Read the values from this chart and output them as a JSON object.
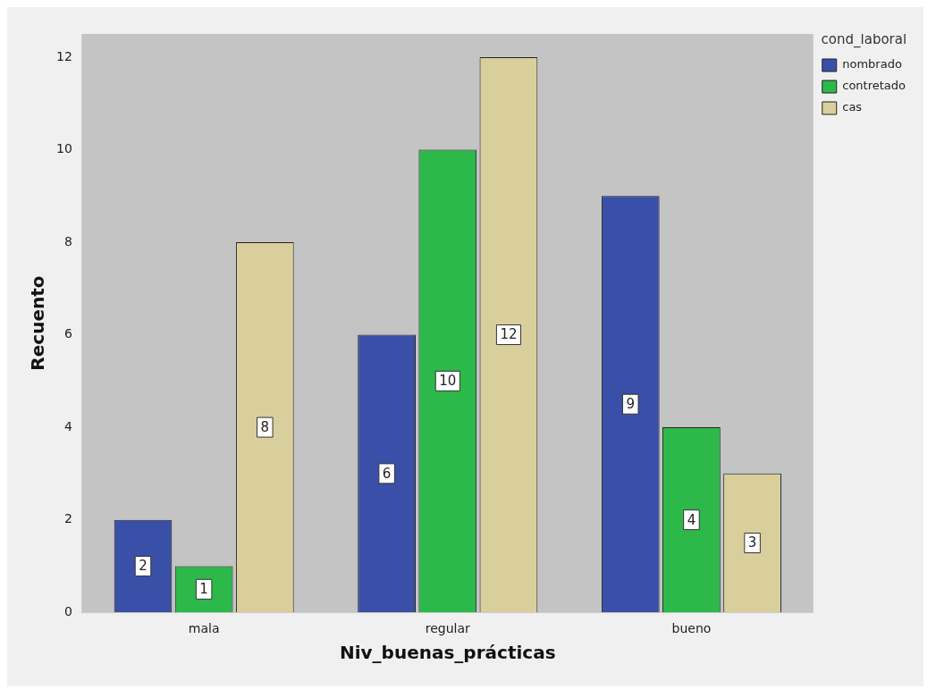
{
  "chart_data": {
    "type": "bar",
    "xlabel": "Niv_buenas_prácticas",
    "ylabel": "Recuento",
    "legend_title": "cond_laboral",
    "categories": [
      "mala",
      "regular",
      "bueno"
    ],
    "series": [
      {
        "name": "nombrado",
        "color": "#3a4fa8",
        "values": [
          2,
          6,
          9
        ]
      },
      {
        "name": "contretado",
        "color": "#2db84a",
        "values": [
          1,
          10,
          4
        ]
      },
      {
        "name": "cas",
        "color": "#d9cf9c",
        "values": [
          8,
          12,
          3
        ]
      }
    ],
    "ylim": [
      0,
      12.5
    ],
    "yticks": [
      0,
      2,
      4,
      6,
      8,
      10,
      12
    ],
    "grid": false,
    "legend": "top right",
    "data_labels": true
  }
}
